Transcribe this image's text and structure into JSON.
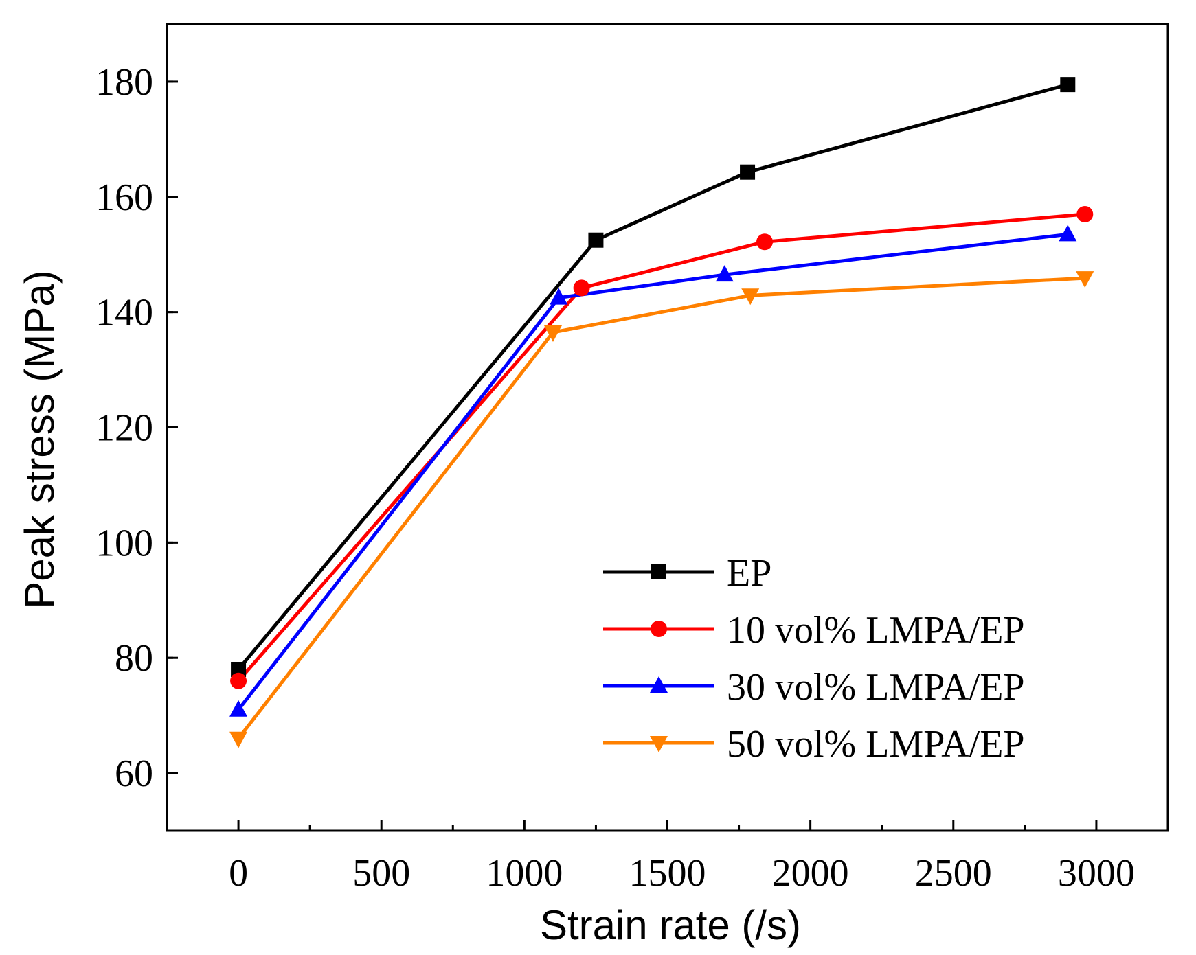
{
  "chart_data": {
    "type": "line",
    "title": "",
    "xlabel": "Strain rate (/s)",
    "ylabel": "Peak stress (MPa)",
    "xlim": [
      -250,
      3250
    ],
    "ylim": [
      50,
      190
    ],
    "xticks": [
      0,
      500,
      1000,
      1500,
      2000,
      2500,
      3000
    ],
    "yticks": [
      60,
      80,
      100,
      120,
      140,
      160,
      180
    ],
    "legend_position": "bottom-right",
    "grid": false,
    "series": [
      {
        "name": "EP",
        "color": "#000000",
        "marker": "square",
        "x": [
          0,
          1250,
          1780,
          2900
        ],
        "y": [
          78,
          152.5,
          164.3,
          179.5
        ]
      },
      {
        "name": "10 vol% LMPA/EP",
        "color": "#ff0000",
        "marker": "circle",
        "x": [
          0,
          1200,
          1840,
          2960
        ],
        "y": [
          76,
          144.2,
          152.2,
          157
        ]
      },
      {
        "name": "30 vol% LMPA/EP",
        "color": "#0000ff",
        "marker": "triangle-up",
        "x": [
          0,
          1120,
          1700,
          2900
        ],
        "y": [
          71,
          142.5,
          146.5,
          153.5
        ]
      },
      {
        "name": "50 vol% LMPA/EP",
        "color": "#ff8000",
        "marker": "triangle-down",
        "x": [
          0,
          1100,
          1790,
          2960
        ],
        "y": [
          66,
          136.5,
          142.9,
          145.9
        ]
      }
    ]
  }
}
